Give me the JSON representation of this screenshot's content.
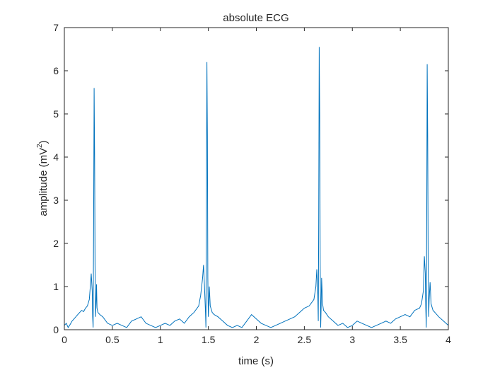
{
  "chart_data": {
    "type": "line",
    "title": "absolute ECG",
    "xlabel": "time (s)",
    "ylabel": {
      "base": "amplitude (mV",
      "sup": "2",
      "close": ")"
    },
    "xlim": [
      0,
      4
    ],
    "ylim": [
      0,
      7
    ],
    "xticks": [
      "0",
      "0.5",
      "1",
      "1.5",
      "2",
      "2.5",
      "3",
      "3.5",
      "4"
    ],
    "yticks": [
      "0",
      "1",
      "2",
      "3",
      "4",
      "5",
      "6",
      "7"
    ],
    "xtick_values": [
      0,
      0.5,
      1,
      1.5,
      2,
      2.5,
      3,
      3.5,
      4
    ],
    "ytick_values": [
      0,
      1,
      2,
      3,
      4,
      5,
      6,
      7
    ],
    "grid": false,
    "line_color": "#0072BD",
    "series": [
      {
        "x": [
          0.0,
          0.02,
          0.04,
          0.06,
          0.08,
          0.1,
          0.12,
          0.14,
          0.16,
          0.18,
          0.2,
          0.22,
          0.24,
          0.26,
          0.27,
          0.28,
          0.29,
          0.295,
          0.3,
          0.305,
          0.31,
          0.315,
          0.32,
          0.325,
          0.33,
          0.335,
          0.34,
          0.35,
          0.37,
          0.4,
          0.45,
          0.5,
          0.55,
          0.6,
          0.65,
          0.7,
          0.75,
          0.8,
          0.85,
          0.9,
          0.95,
          1.0,
          1.05,
          1.1,
          1.15,
          1.2,
          1.25,
          1.3,
          1.35,
          1.4,
          1.42,
          1.44,
          1.45,
          1.46,
          1.47,
          1.475,
          1.48,
          1.485,
          1.49,
          1.495,
          1.5,
          1.505,
          1.51,
          1.52,
          1.54,
          1.56,
          1.6,
          1.65,
          1.7,
          1.75,
          1.8,
          1.85,
          1.9,
          1.95,
          2.0,
          2.05,
          2.1,
          2.15,
          2.2,
          2.25,
          2.3,
          2.35,
          2.4,
          2.45,
          2.5,
          2.55,
          2.6,
          2.62,
          2.63,
          2.64,
          2.645,
          2.65,
          2.655,
          2.66,
          2.665,
          2.67,
          2.675,
          2.68,
          2.69,
          2.7,
          2.72,
          2.75,
          2.8,
          2.85,
          2.9,
          2.95,
          3.0,
          3.05,
          3.1,
          3.15,
          3.2,
          3.25,
          3.3,
          3.35,
          3.4,
          3.45,
          3.5,
          3.55,
          3.6,
          3.65,
          3.7,
          3.72,
          3.74,
          3.75,
          3.76,
          3.765,
          3.77,
          3.775,
          3.78,
          3.785,
          3.79,
          3.795,
          3.8,
          3.81,
          3.82,
          3.84,
          3.86,
          3.9,
          3.95,
          4.0
        ],
        "y": [
          0.1,
          0.15,
          0.05,
          0.12,
          0.2,
          0.25,
          0.3,
          0.35,
          0.4,
          0.45,
          0.42,
          0.5,
          0.55,
          0.7,
          1.0,
          1.3,
          0.9,
          0.3,
          0.05,
          2.5,
          5.6,
          4.0,
          1.5,
          0.3,
          0.6,
          1.05,
          0.5,
          0.4,
          0.35,
          0.3,
          0.15,
          0.1,
          0.15,
          0.1,
          0.05,
          0.2,
          0.25,
          0.3,
          0.15,
          0.1,
          0.05,
          0.1,
          0.15,
          0.1,
          0.2,
          0.25,
          0.15,
          0.3,
          0.4,
          0.55,
          0.8,
          1.2,
          1.5,
          1.0,
          0.4,
          0.05,
          3.0,
          6.2,
          4.5,
          1.2,
          0.3,
          0.6,
          1.0,
          0.55,
          0.4,
          0.35,
          0.3,
          0.2,
          0.1,
          0.05,
          0.1,
          0.05,
          0.2,
          0.35,
          0.25,
          0.15,
          0.1,
          0.05,
          0.1,
          0.15,
          0.2,
          0.25,
          0.3,
          0.4,
          0.5,
          0.55,
          0.7,
          1.0,
          1.4,
          0.8,
          0.2,
          2.5,
          6.55,
          5.0,
          1.5,
          0.05,
          0.5,
          1.2,
          0.6,
          0.45,
          0.4,
          0.3,
          0.2,
          0.1,
          0.15,
          0.05,
          0.1,
          0.2,
          0.15,
          0.1,
          0.05,
          0.1,
          0.15,
          0.2,
          0.15,
          0.25,
          0.3,
          0.35,
          0.3,
          0.45,
          0.5,
          0.6,
          0.9,
          1.7,
          1.3,
          0.5,
          0.05,
          2.8,
          6.15,
          4.5,
          1.5,
          0.3,
          0.7,
          1.1,
          0.6,
          0.45,
          0.4,
          0.3,
          0.2,
          0.1
        ]
      }
    ]
  }
}
